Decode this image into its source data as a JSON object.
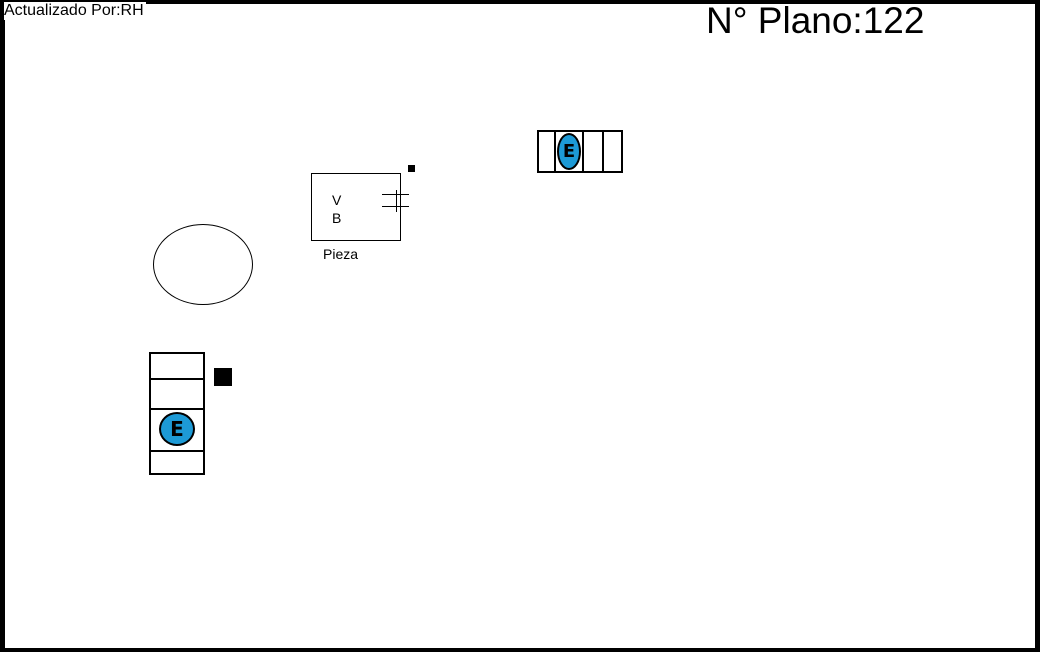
{
  "header": {
    "updated_by": "Actualizado Por:RH",
    "plan_number": "N° Plano:122"
  },
  "piece": {
    "letter_v": "V",
    "letter_b": "B",
    "caption": "Pieza"
  },
  "markers": {
    "top_strip_marker": "E",
    "left_strip_marker": "E"
  },
  "colors": {
    "marker_fill": "#1d9ad6",
    "line": "#000000",
    "background": "#ffffff"
  }
}
